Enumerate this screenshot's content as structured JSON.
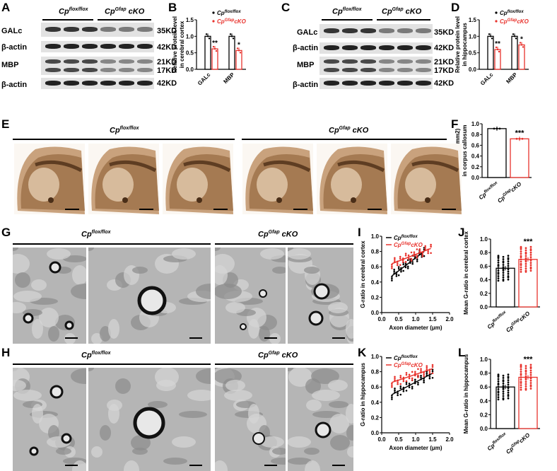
{
  "panels": {
    "A": "A",
    "B": "B",
    "C": "C",
    "D": "D",
    "E": "E",
    "F": "F",
    "G": "G",
    "H": "H",
    "I": "I",
    "J": "J",
    "K": "K",
    "L": "L"
  },
  "genotypes": {
    "flox_base": "Cp",
    "flox_sup": "flox/flox",
    "cko_base": "Cp",
    "cko_sup": "Gfap",
    "cko_suffix": " cKO",
    "cko_suffix_tight": "cKO"
  },
  "blot_A": {
    "rows": [
      "GALc",
      "β-actin",
      "MBP",
      "β-actin"
    ],
    "sizes": [
      "35KD",
      "42KD",
      "21KD",
      "17KD",
      "42KD"
    ]
  },
  "blot_C": {
    "rows": [
      "GALc",
      "β-actin",
      "MBP",
      "β-actin"
    ],
    "sizes": [
      "35KD",
      "42KD",
      "21KD",
      "17KD",
      "42KD"
    ]
  },
  "chart_B": {
    "ylabel_1": "Relative protein level",
    "ylabel_2": "in cerebral cortex"
  },
  "chart_D": {
    "ylabel_1": "Relative protein level",
    "ylabel_2": "in hippocampus"
  },
  "chart_F": {
    "ylabel_1": "MBP area (mm",
    "ylabel_sup": "2",
    "ylabel_end": ")",
    "ylabel_2": "in corpus callosum"
  },
  "chart_I": {
    "ylabel": "G-ratio in cerebral cortex",
    "xlabel": "Axon diameter (μm)"
  },
  "chart_K": {
    "ylabel": "G-ratio in hippocampus",
    "xlabel": "Axon diameter (μm)"
  },
  "chart_J": {
    "ylabel": "Mean G-ratio in cerebral cortex"
  },
  "chart_L": {
    "ylabel": "Mean G-ratio in hippocampus"
  },
  "colors": {
    "flox": "#000000",
    "cko": "#e8322c"
  },
  "chart_data": [
    {
      "type": "bar",
      "panel": "B",
      "categories": [
        "GALc",
        "MBP"
      ],
      "series": [
        {
          "name": "Cp flox/flox",
          "values": [
            1.0,
            1.0
          ]
        },
        {
          "name": "Cp Gfap cKO",
          "values": [
            0.62,
            0.57
          ]
        }
      ],
      "significance": [
        "**",
        "*"
      ],
      "ylim": [
        0,
        1.5
      ],
      "yticks": [
        "0.0",
        "0.5",
        "1.0",
        "1.5"
      ]
    },
    {
      "type": "bar",
      "panel": "D",
      "categories": [
        "GALc",
        "MBP"
      ],
      "series": [
        {
          "name": "Cp flox/flox",
          "values": [
            1.0,
            1.0
          ]
        },
        {
          "name": "Cp Gfap cKO",
          "values": [
            0.6,
            0.74
          ]
        }
      ],
      "significance": [
        "**",
        "*"
      ],
      "ylim": [
        0,
        1.5
      ],
      "yticks": [
        "0.0",
        "0.5",
        "1.0",
        "1.5"
      ]
    },
    {
      "type": "bar",
      "panel": "F",
      "categories": [
        "Cp flox/flox",
        "Cp Gfap cKO"
      ],
      "values": [
        0.91,
        0.72
      ],
      "significance": [
        "",
        "***"
      ],
      "ylim": [
        0,
        1.0
      ],
      "yticks": [
        "0.0",
        "0.2",
        "0.4",
        "0.6",
        "0.8",
        "1.0"
      ]
    },
    {
      "type": "scatter",
      "panel": "I",
      "xlim": [
        0,
        2.0
      ],
      "ylim": [
        0,
        1.0
      ],
      "xticks": [
        "0.0",
        "0.5",
        "1.0",
        "1.5",
        "2.0"
      ],
      "yticks": [
        "0.0",
        "0.2",
        "0.4",
        "0.6",
        "0.8",
        "1.0"
      ],
      "series": [
        {
          "name": "Cp flox/flox",
          "fit": [
            [
              0.3,
              0.48
            ],
            [
              1.25,
              0.8
            ]
          ]
        },
        {
          "name": "Cp Gfap cKO",
          "fit": [
            [
              0.3,
              0.64
            ],
            [
              1.45,
              0.84
            ]
          ]
        }
      ]
    },
    {
      "type": "bar",
      "panel": "J",
      "categories": [
        "Cp flox/flox",
        "Cp Gfap cKO"
      ],
      "values": [
        0.57,
        0.7
      ],
      "significance": [
        "",
        "***"
      ],
      "ylim": [
        0,
        1.0
      ],
      "yticks": [
        "0.0",
        "0.2",
        "0.4",
        "0.6",
        "0.8",
        "1.0"
      ]
    },
    {
      "type": "scatter",
      "panel": "K",
      "xlim": [
        0,
        2.0
      ],
      "ylim": [
        0,
        1.0
      ],
      "xticks": [
        "0.0",
        "0.5",
        "1.0",
        "1.5",
        "2.0"
      ],
      "yticks": [
        "0.0",
        "0.2",
        "0.4",
        "0.6",
        "0.8",
        "1.0"
      ],
      "series": [
        {
          "name": "Cp flox/flox",
          "fit": [
            [
              0.3,
              0.5
            ],
            [
              1.5,
              0.78
            ]
          ]
        },
        {
          "name": "Cp Gfap cKO",
          "fit": [
            [
              0.3,
              0.66
            ],
            [
              1.5,
              0.84
            ]
          ]
        }
      ]
    },
    {
      "type": "bar",
      "panel": "L",
      "categories": [
        "Cp flox/flox",
        "Cp Gfap cKO"
      ],
      "values": [
        0.6,
        0.74
      ],
      "significance": [
        "",
        "***"
      ],
      "ylim": [
        0,
        1.0
      ],
      "yticks": [
        "0.0",
        "0.2",
        "0.4",
        "0.6",
        "0.8",
        "1.0"
      ]
    }
  ]
}
